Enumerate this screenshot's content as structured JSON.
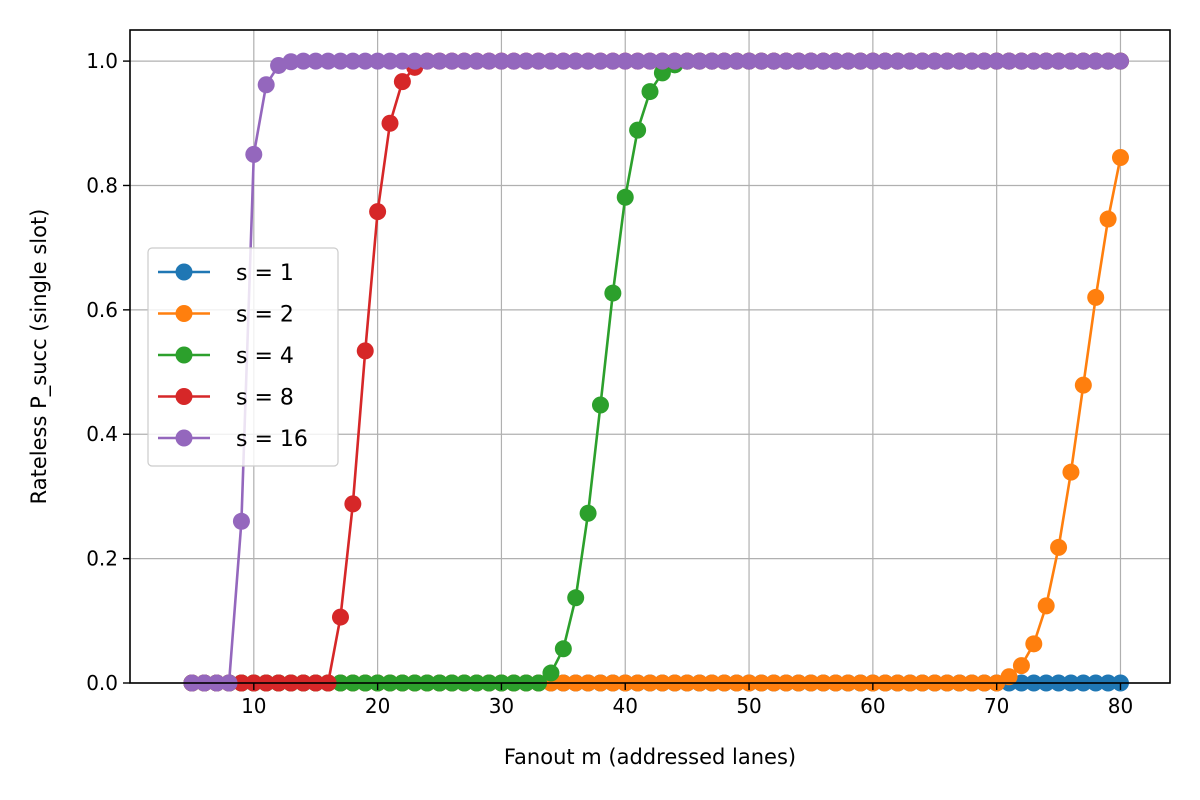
{
  "chart_data": {
    "type": "line",
    "title": "",
    "xlabel": "Fanout m (addressed lanes)",
    "ylabel": "Rateless P_succ (single slot)",
    "xlim": [
      0,
      84
    ],
    "ylim": [
      0,
      1.05
    ],
    "x_ticks": [
      10,
      20,
      30,
      40,
      50,
      60,
      70,
      80
    ],
    "y_ticks": [
      0.0,
      0.2,
      0.4,
      0.6,
      0.8,
      1.0
    ],
    "x_tick_labels": [
      "10",
      "20",
      "30",
      "40",
      "50",
      "60",
      "70",
      "80"
    ],
    "y_tick_labels": [
      "0.0",
      "0.2",
      "0.4",
      "0.6",
      "0.8",
      "1.0"
    ],
    "grid": true,
    "legend_position": "center-left",
    "x": [
      5,
      6,
      7,
      8,
      9,
      10,
      11,
      12,
      13,
      14,
      15,
      16,
      17,
      18,
      19,
      20,
      21,
      22,
      23,
      24,
      25,
      26,
      27,
      28,
      29,
      30,
      31,
      32,
      33,
      34,
      35,
      36,
      37,
      38,
      39,
      40,
      41,
      42,
      43,
      44,
      45,
      46,
      47,
      48,
      49,
      50,
      51,
      52,
      53,
      54,
      55,
      56,
      57,
      58,
      59,
      60,
      61,
      62,
      63,
      64,
      65,
      66,
      67,
      68,
      69,
      70,
      71,
      72,
      73,
      74,
      75,
      76,
      77,
      78,
      79,
      80
    ],
    "series": [
      {
        "name": "s = 1",
        "color": "#1f77b4",
        "values": [
          0,
          0,
          0,
          0,
          0,
          0,
          0,
          0,
          0,
          0,
          0,
          0,
          0,
          0,
          0,
          0,
          0,
          0,
          0,
          0,
          0,
          0,
          0,
          0,
          0,
          0,
          0,
          0,
          0,
          0,
          0,
          0,
          0,
          0,
          0,
          0,
          0,
          0,
          0,
          0,
          0,
          0,
          0,
          0,
          0,
          0,
          0,
          0,
          0,
          0,
          0,
          0,
          0,
          0,
          0,
          0,
          0,
          0,
          0,
          0,
          0,
          0,
          0,
          0,
          0,
          0,
          0,
          0,
          0,
          0,
          0,
          0,
          0,
          0,
          0,
          0
        ]
      },
      {
        "name": "s = 2",
        "color": "#ff7f0e",
        "values": [
          0,
          0,
          0,
          0,
          0,
          0,
          0,
          0,
          0,
          0,
          0,
          0,
          0,
          0,
          0,
          0,
          0,
          0,
          0,
          0,
          0,
          0,
          0,
          0,
          0,
          0,
          0,
          0,
          0,
          0,
          0,
          0,
          0,
          0,
          0,
          0,
          0,
          0,
          0,
          0,
          0,
          0,
          0,
          0,
          0,
          0,
          0,
          0,
          0,
          0,
          0,
          0,
          0,
          0,
          0,
          0,
          0,
          0,
          0,
          0,
          0,
          0,
          0,
          0,
          0,
          0,
          0.01,
          0.028,
          0.063,
          0.124,
          0.218,
          0.339,
          0.479,
          0.62,
          0.746,
          0.845
        ]
      },
      {
        "name": "s = 4",
        "color": "#2ca02c",
        "values": [
          0,
          0,
          0,
          0,
          0,
          0,
          0,
          0,
          0,
          0,
          0,
          0,
          0,
          0,
          0,
          0,
          0,
          0,
          0,
          0,
          0,
          0,
          0,
          0,
          0,
          0,
          0,
          0,
          0,
          0.016,
          0.055,
          0.137,
          0.273,
          0.447,
          0.627,
          0.781,
          0.889,
          0.951,
          0.981,
          0.994,
          1,
          1,
          1,
          1,
          1,
          1,
          1,
          1,
          1,
          1,
          1,
          1,
          1,
          1,
          1,
          1,
          1,
          1,
          1,
          1,
          1,
          1,
          1,
          1,
          1,
          1,
          1,
          1,
          1,
          1,
          1,
          1,
          1,
          1,
          1,
          1
        ]
      },
      {
        "name": "s = 8",
        "color": "#d62728",
        "values": [
          0,
          0,
          0,
          0,
          0,
          0,
          0,
          0,
          0,
          0,
          0,
          0,
          0.106,
          0.288,
          0.534,
          0.758,
          0.9,
          0.967,
          0.99,
          1,
          1,
          1,
          1,
          1,
          1,
          1,
          1,
          1,
          1,
          1,
          1,
          1,
          1,
          1,
          1,
          1,
          1,
          1,
          1,
          1,
          1,
          1,
          1,
          1,
          1,
          1,
          1,
          1,
          1,
          1,
          1,
          1,
          1,
          1,
          1,
          1,
          1,
          1,
          1,
          1,
          1,
          1,
          1,
          1,
          1,
          1,
          1,
          1,
          1,
          1,
          1,
          1,
          1,
          1,
          1,
          1
        ]
      },
      {
        "name": "s = 16",
        "color": "#9467bd",
        "values": [
          0,
          0,
          0,
          0,
          0.26,
          0.85,
          0.962,
          0.993,
          0.999,
          1,
          1,
          1,
          1,
          1,
          1,
          1,
          1,
          1,
          1,
          1,
          1,
          1,
          1,
          1,
          1,
          1,
          1,
          1,
          1,
          1,
          1,
          1,
          1,
          1,
          1,
          1,
          1,
          1,
          1,
          1,
          1,
          1,
          1,
          1,
          1,
          1,
          1,
          1,
          1,
          1,
          1,
          1,
          1,
          1,
          1,
          1,
          1,
          1,
          1,
          1,
          1,
          1,
          1,
          1,
          1,
          1,
          1,
          1,
          1,
          1,
          1,
          1,
          1,
          1,
          1,
          1
        ]
      }
    ]
  }
}
